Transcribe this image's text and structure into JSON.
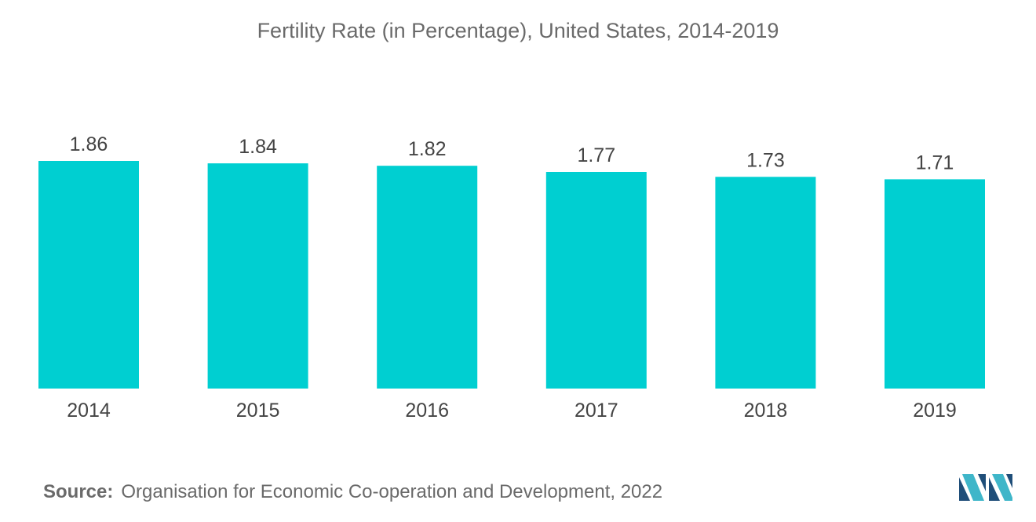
{
  "chart_data": {
    "type": "bar",
    "title": "Fertility Rate (in Percentage), United States, 2014-2019",
    "categories": [
      "2014",
      "2015",
      "2016",
      "2017",
      "2018",
      "2019"
    ],
    "values": [
      1.86,
      1.84,
      1.82,
      1.77,
      1.73,
      1.71
    ],
    "data_labels": [
      "1.86",
      "1.84",
      "1.82",
      "1.77",
      "1.73",
      "1.71"
    ],
    "xlabel": "",
    "ylabel": "",
    "ylim": [
      0,
      1.86
    ],
    "grid": false,
    "legend": "none",
    "bar_color": "#00cfd1"
  },
  "source": {
    "label": "Source:",
    "text": "Organisation for Economic Co-operation and Development, 2022"
  },
  "logo": {
    "icon": "mordor-intelligence-logo-icon",
    "colors": [
      "#1f4e79",
      "#3fb6c9"
    ]
  }
}
